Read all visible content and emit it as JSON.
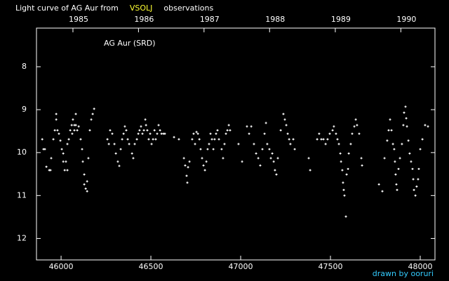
{
  "chart_data": {
    "type": "scatter",
    "title_parts": [
      {
        "text": "Light curve of AG Aur from",
        "color": "#ffffff"
      },
      {
        "text": "VSOLJ",
        "color": "#ffff33"
      },
      {
        "text": "observations",
        "color": "#ffffff"
      }
    ],
    "annotation": "AG Aur (SRD)",
    "credit": "drawn by ooruri",
    "credit_color": "#33ccff",
    "color": "#ffffff",
    "xlim": [
      45863,
      48082
    ],
    "xticks": [
      46000,
      46500,
      47000,
      47500,
      48000
    ],
    "x2ticks": [
      {
        "value": 46066,
        "label": "1985"
      },
      {
        "value": 46431,
        "label": "1986"
      },
      {
        "value": 46796,
        "label": "1987"
      },
      {
        "value": 47161,
        "label": "1988"
      },
      {
        "value": 47527,
        "label": "1989"
      },
      {
        "value": 47892,
        "label": "1990"
      }
    ],
    "ylim": [
      7.1,
      12.5
    ],
    "y_inverted": true,
    "yticks": [
      8,
      9,
      10,
      11,
      12
    ],
    "x": [
      45895,
      45902,
      45910,
      45918,
      45934,
      45941,
      45945,
      45957,
      45965,
      45973,
      45973,
      45980,
      45988,
      45996,
      46004,
      46012,
      46012,
      46020,
      46027,
      46035,
      46035,
      46043,
      46051,
      46059,
      46062,
      46066,
      46074,
      46074,
      46082,
      46082,
      46090,
      46098,
      46109,
      46117,
      46121,
      46129,
      46129,
      46137,
      46145,
      46145,
      46152,
      46160,
      46168,
      46176,
      46184,
      46258,
      46266,
      46273,
      46285,
      46297,
      46305,
      46316,
      46324,
      46332,
      46340,
      46348,
      46355,
      46363,
      46371,
      46379,
      46395,
      46402,
      46410,
      46422,
      46430,
      46437,
      46445,
      46453,
      46461,
      46469,
      46473,
      46480,
      46488,
      46496,
      46504,
      46512,
      46520,
      46527,
      46535,
      46543,
      46551,
      46559,
      46570,
      46578,
      46629,
      46656,
      46684,
      46691,
      46699,
      46703,
      46707,
      46715,
      46730,
      46738,
      46746,
      46754,
      46762,
      46770,
      46777,
      46785,
      46793,
      46801,
      46809,
      46816,
      46824,
      46832,
      46840,
      46848,
      46855,
      46863,
      46871,
      46879,
      46894,
      46902,
      46910,
      46918,
      46926,
      46934,
      46941,
      46988,
      47008,
      47035,
      47047,
      47059,
      47074,
      47086,
      47098,
      47109,
      47121,
      47133,
      47141,
      47148,
      47160,
      47168,
      47176,
      47184,
      47191,
      47199,
      47207,
      47223,
      47238,
      47246,
      47254,
      47262,
      47270,
      47277,
      47293,
      47301,
      47379,
      47387,
      47426,
      47437,
      47449,
      47461,
      47473,
      47484,
      47496,
      47512,
      47519,
      47531,
      47539,
      47547,
      47555,
      47559,
      47566,
      47570,
      47574,
      47578,
      47586,
      47590,
      47598,
      47602,
      47613,
      47621,
      47633,
      47641,
      47648,
      47660,
      47672,
      47676,
      47770,
      47789,
      47801,
      47816,
      47824,
      47832,
      47840,
      47848,
      47855,
      47859,
      47863,
      47867,
      47871,
      47879,
      47887,
      47898,
      47906,
      47910,
      47918,
      47922,
      47926,
      47934,
      47941,
      47949,
      47957,
      47961,
      47965,
      47973,
      47980,
      47988,
      47992,
      48000,
      48012,
      48027,
      48043
    ],
    "values": [
      9.69,
      9.92,
      9.92,
      10.33,
      10.41,
      10.41,
      10.13,
      9.69,
      9.48,
      9.1,
      9.23,
      9.48,
      9.56,
      9.72,
      9.92,
      10.02,
      10.21,
      10.41,
      10.21,
      10.41,
      9.8,
      9.69,
      9.48,
      9.36,
      9.56,
      9.23,
      9.36,
      9.48,
      9.1,
      9.36,
      9.48,
      9.39,
      9.69,
      9.92,
      10.21,
      10.51,
      10.74,
      10.84,
      10.9,
      10.67,
      10.13,
      9.48,
      9.23,
      9.1,
      8.98,
      9.69,
      9.8,
      9.48,
      9.56,
      9.8,
      10.02,
      10.21,
      10.31,
      9.92,
      9.69,
      9.56,
      9.39,
      9.48,
      9.69,
      9.8,
      10.02,
      10.13,
      9.8,
      9.69,
      9.56,
      9.48,
      9.39,
      9.56,
      9.48,
      9.23,
      9.36,
      9.48,
      9.69,
      9.56,
      9.8,
      9.69,
      9.48,
      9.69,
      9.56,
      9.36,
      9.48,
      9.56,
      9.56,
      9.56,
      9.64,
      9.69,
      10.13,
      10.3,
      10.54,
      10.7,
      10.34,
      10.21,
      9.69,
      9.56,
      9.8,
      9.52,
      9.56,
      9.69,
      9.92,
      10.13,
      10.3,
      10.41,
      10.21,
      9.92,
      9.8,
      9.56,
      9.69,
      9.92,
      9.69,
      9.56,
      9.48,
      9.69,
      9.92,
      10.13,
      9.8,
      9.56,
      9.48,
      9.36,
      9.48,
      9.8,
      10.21,
      9.39,
      9.56,
      9.39,
      9.8,
      10.02,
      10.13,
      10.3,
      9.92,
      9.56,
      9.31,
      9.8,
      9.92,
      10.13,
      10.02,
      10.21,
      10.41,
      10.51,
      10.13,
      9.48,
      9.1,
      9.23,
      9.36,
      9.56,
      9.69,
      9.8,
      9.69,
      9.92,
      10.13,
      10.41,
      9.69,
      9.56,
      9.69,
      9.69,
      9.8,
      9.69,
      9.56,
      9.48,
      9.39,
      9.56,
      9.69,
      9.8,
      10.02,
      10.21,
      10.41,
      10.7,
      10.87,
      11.0,
      11.49,
      10.51,
      10.38,
      10.02,
      9.8,
      9.56,
      9.39,
      9.23,
      9.36,
      9.56,
      10.13,
      10.3,
      10.74,
      10.9,
      10.13,
      9.72,
      9.48,
      9.23,
      9.48,
      9.8,
      9.92,
      10.21,
      10.51,
      10.74,
      10.87,
      10.38,
      10.13,
      9.8,
      9.36,
      9.07,
      8.93,
      9.2,
      9.39,
      9.72,
      10.02,
      10.21,
      10.38,
      10.62,
      10.87,
      11.0,
      10.79,
      10.62,
      10.38,
      9.92,
      9.69,
      9.36,
      9.39
    ]
  }
}
